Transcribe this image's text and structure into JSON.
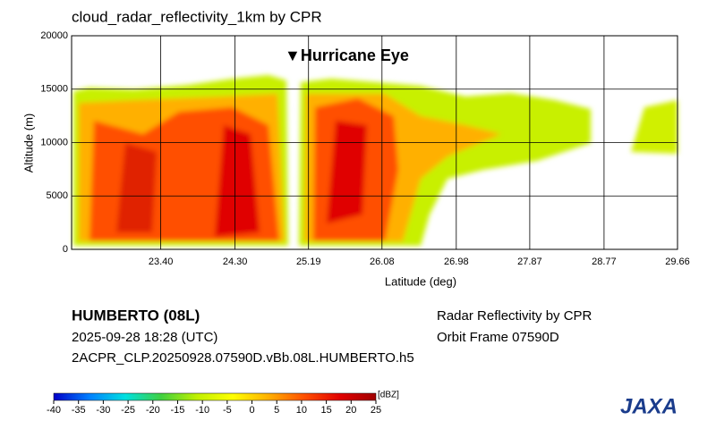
{
  "chart_data": {
    "type": "curtain",
    "title": "cloud_radar_reflectivity_1km by CPR",
    "xlabel": "Latitude (deg)",
    "ylabel": "Altitude (m)",
    "annotation": "▼Hurricane Eye",
    "xlim": [
      22.32,
      29.66
    ],
    "ylim": [
      0,
      20000
    ],
    "xticks": [
      {
        "value": 23.4,
        "label": "23.40"
      },
      {
        "value": 24.3,
        "label": "24.30"
      },
      25.19,
      26.08,
      26.98,
      27.87,
      28.77,
      29.66
    ],
    "yticks": [
      0,
      5000,
      10000,
      15000,
      20000
    ],
    "grid": true,
    "colorbar": {
      "label": "[dBZ]",
      "lim": [
        -40,
        25
      ],
      "ticks": [
        -40,
        -35,
        -30,
        -25,
        -20,
        -15,
        -10,
        -5,
        0,
        5,
        10,
        15,
        20,
        25
      ],
      "colors": [
        "#0000c8",
        "#0080ff",
        "#00e0e0",
        "#40d040",
        "#c0f000",
        "#ffff00",
        "#ffb000",
        "#ff5000",
        "#e00000",
        "#a00000"
      ]
    }
  },
  "info": {
    "storm": "HUMBERTO (08L)",
    "time": "2025-09-28 18:28 (UTC)",
    "file": "2ACPR_CLP.20250928.07590D.vBb.08L.HUMBERTO.h5",
    "product": "Radar Reflectivity by CPR",
    "orbit": "Orbit Frame 07590D"
  },
  "logo": "JAXA"
}
